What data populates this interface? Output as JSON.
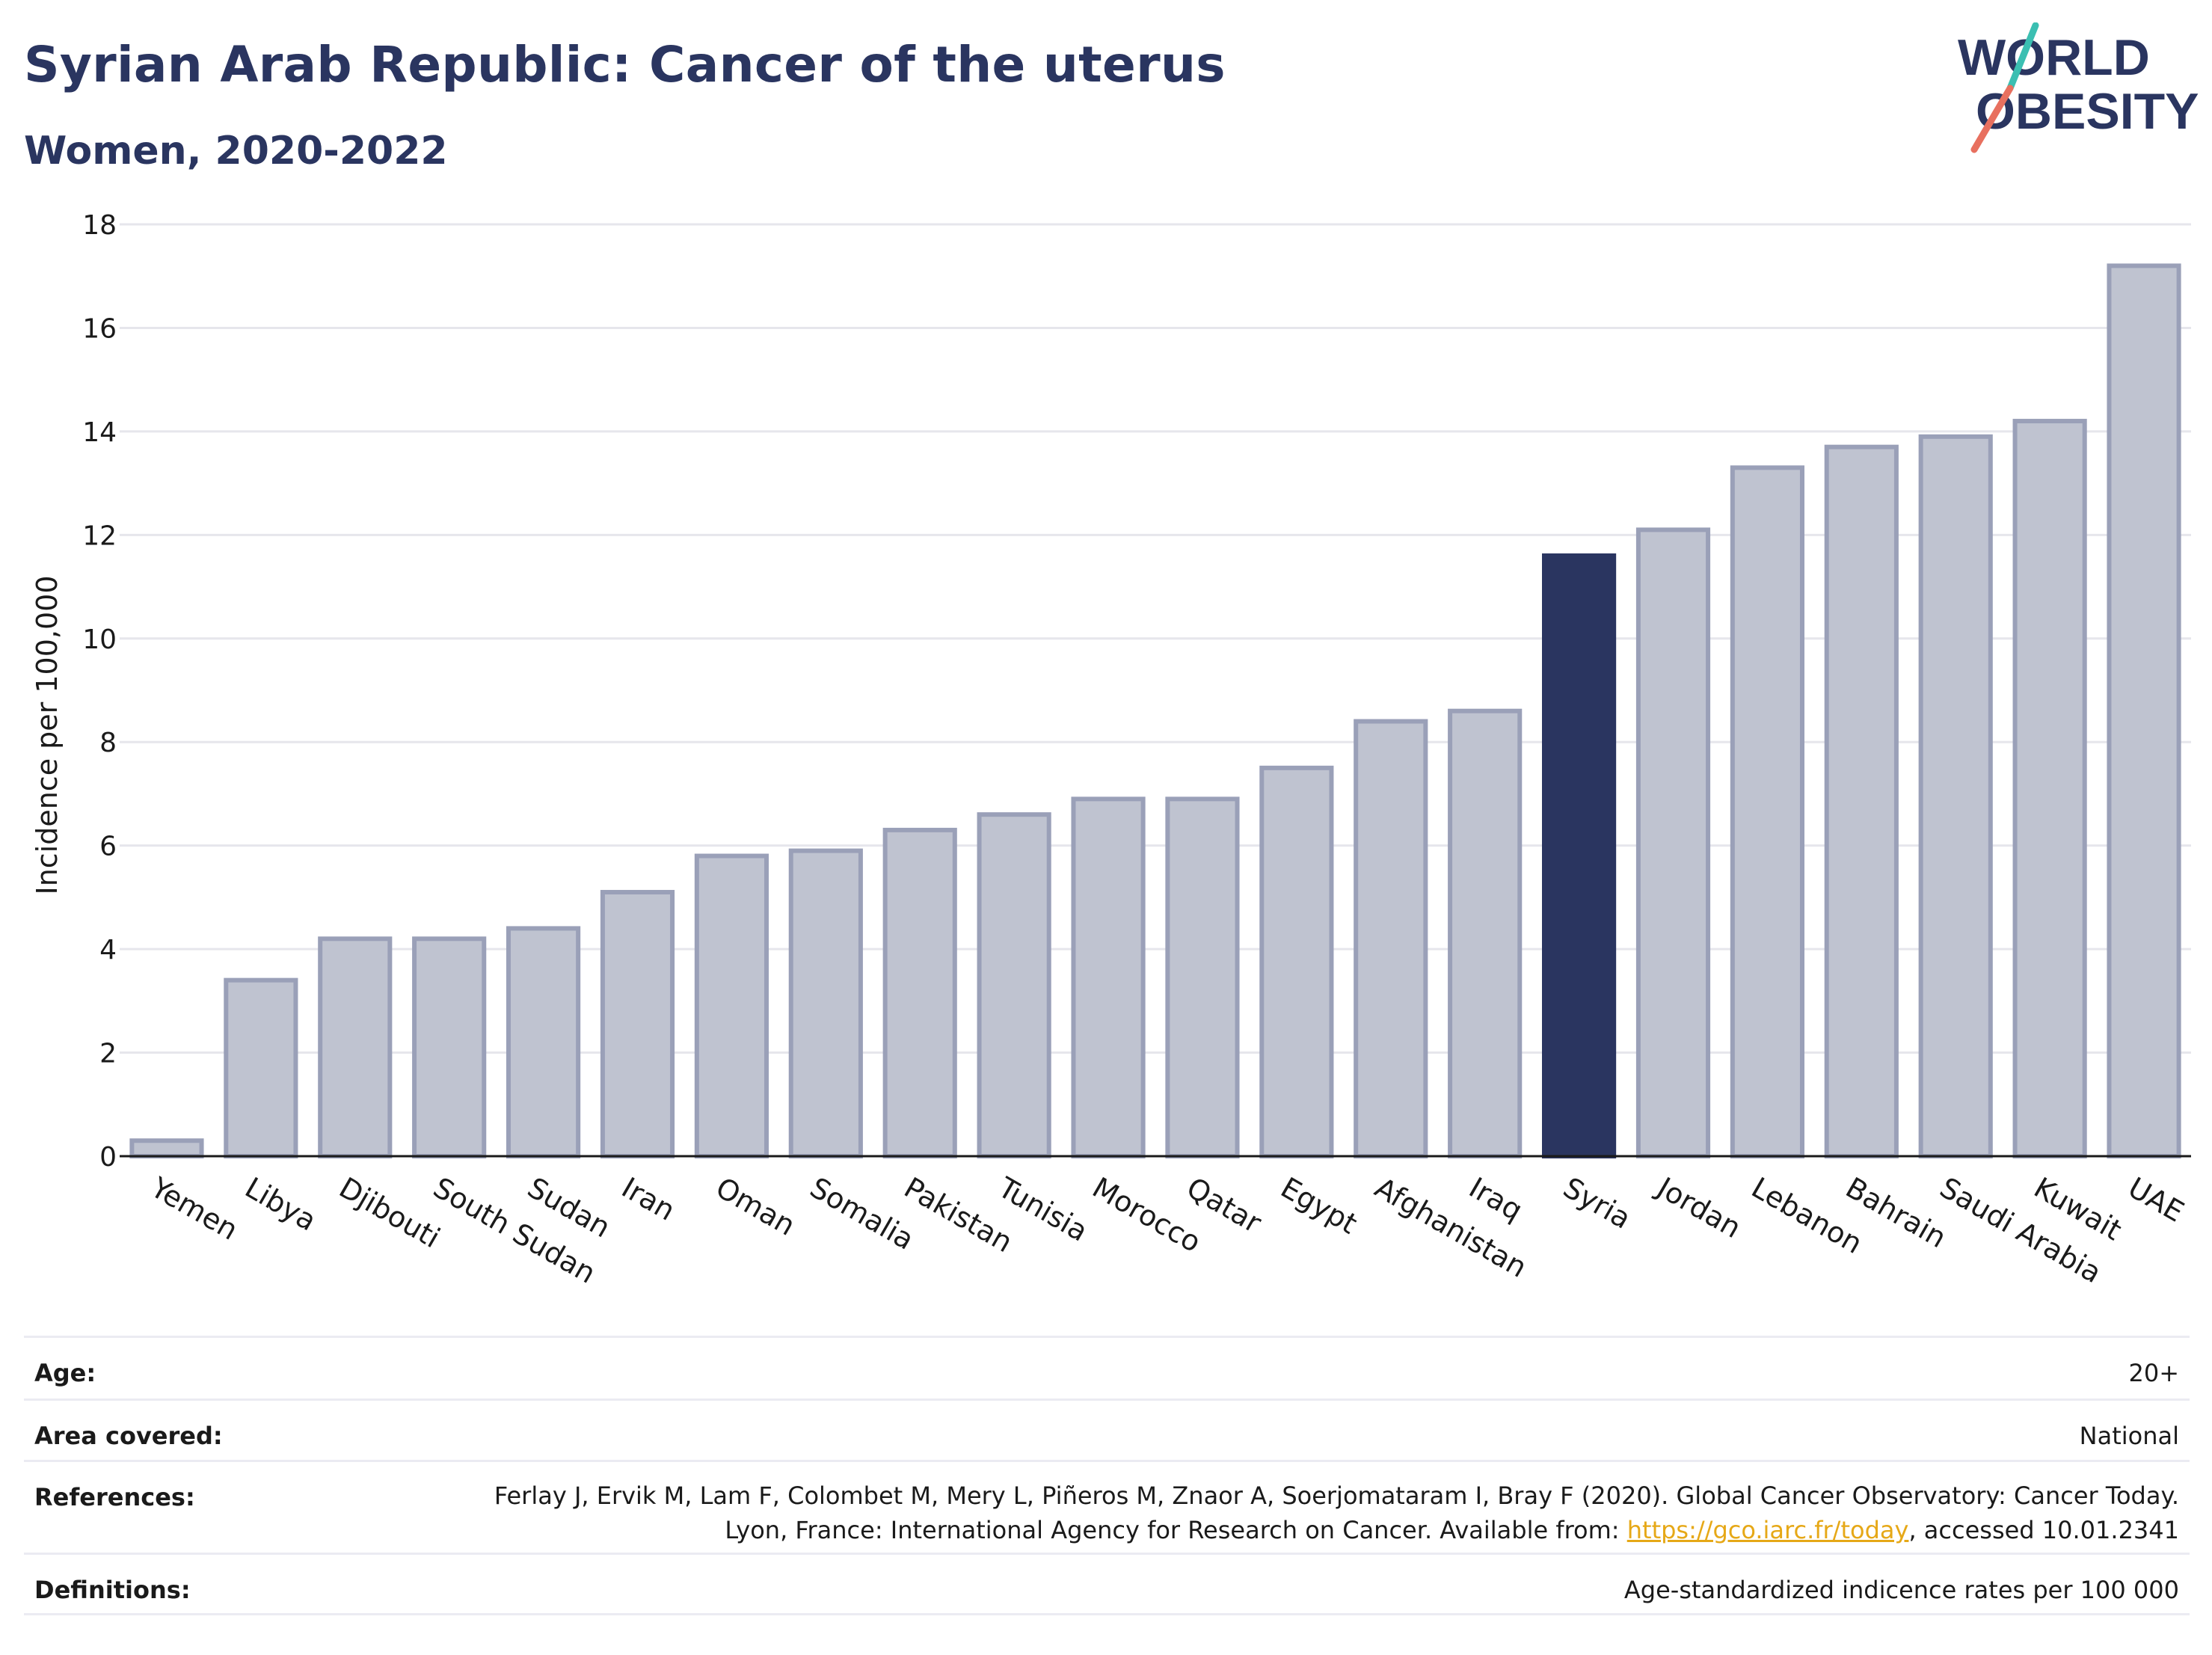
{
  "header": {
    "title": "Syrian Arab Republic: Cancer of the uterus",
    "subtitle": "Women, 2020-2022"
  },
  "logo": {
    "line1": "WORLD",
    "line2": "OBESITY",
    "accent_teal": "#3bbfb2",
    "accent_red": "#e8705f"
  },
  "chart_data": {
    "type": "bar",
    "ylabel": "Incidence per 100,000",
    "xlabel": "",
    "ylim": [
      0,
      18
    ],
    "yticks": [
      0,
      2,
      4,
      6,
      8,
      10,
      12,
      14,
      16,
      18
    ],
    "grid": true,
    "categories": [
      "Yemen",
      "Libya",
      "Djibouti",
      "South Sudan",
      "Sudan",
      "Iran",
      "Oman",
      "Somalia",
      "Pakistan",
      "Tunisia",
      "Morocco",
      "Qatar",
      "Egypt",
      "Afghanistan",
      "Iraq",
      "Syria",
      "Jordan",
      "Lebanon",
      "Bahrain",
      "Saudi Arabia",
      "Kuwait",
      "UAE"
    ],
    "values": [
      0.3,
      3.4,
      4.2,
      4.2,
      4.4,
      5.1,
      5.8,
      5.9,
      6.3,
      6.6,
      6.9,
      6.9,
      7.5,
      8.4,
      8.6,
      11.6,
      12.1,
      13.3,
      13.7,
      13.9,
      14.2,
      17.2
    ],
    "highlight": "Syria",
    "colors": {
      "bar_fill": "#bfc3d0",
      "bar_edge": "#9aa0b8",
      "highlight_fill": "#2a3560"
    }
  },
  "info": {
    "age_label": "Age:",
    "age_value": "20+",
    "area_label": "Area covered:",
    "area_value": "National",
    "references_label": "References:",
    "references_text_1": "Ferlay J, Ervik M, Lam F, Colombet M, Mery L, Piñeros M, Znaor A, Soerjomataram I, Bray F (2020). Global Cancer Observatory: Cancer Today. Lyon, France: International Agency for Research on Cancer. Available from: ",
    "references_link": "https://gco.iarc.fr/today",
    "references_text_2": ", accessed 10.01.2341",
    "definitions_label": "Definitions:",
    "definitions_value": "Age-standardized indicence rates per 100 000"
  }
}
